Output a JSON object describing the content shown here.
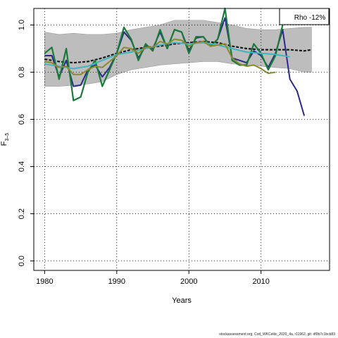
{
  "chart_data": {
    "type": "line",
    "xlabel": "Years",
    "ylabel": "F3-5",
    "ylabel_main": "F",
    "ylabel_sub": "3–5",
    "xlim": [
      1978.5,
      2019.5
    ],
    "ylim": [
      -0.04,
      1.07
    ],
    "x_ticks": [
      1980,
      1990,
      2000,
      2010
    ],
    "y_ticks": [
      0.0,
      0.2,
      0.4,
      0.6,
      0.8,
      1.0
    ],
    "y_tick_labels": [
      "0.0",
      "0.2",
      "0.4",
      "0.6",
      "0.8",
      "1.0"
    ],
    "grid": true,
    "legend_box": "Rho -12%",
    "band": {
      "x": [
        1980,
        1982,
        1984,
        1986,
        1988,
        1990,
        1992,
        1994,
        1996,
        1998,
        2000,
        2002,
        2004,
        2006,
        2008,
        2010,
        2012,
        2014,
        2016,
        2017
      ],
      "lower": [
        0.74,
        0.74,
        0.745,
        0.75,
        0.76,
        0.79,
        0.81,
        0.82,
        0.83,
        0.835,
        0.84,
        0.845,
        0.845,
        0.835,
        0.83,
        0.825,
        0.82,
        0.815,
        0.8,
        0.8
      ],
      "upper": [
        0.97,
        0.96,
        0.965,
        0.96,
        0.96,
        0.965,
        0.98,
        0.99,
        1.0,
        1.02,
        1.02,
        1.02,
        1.01,
        1.0,
        0.985,
        0.98,
        0.98,
        0.985,
        0.99,
        0.99
      ]
    },
    "series": [
      {
        "color": "#1a1a1a",
        "dash": "dashed",
        "width": 2.2,
        "x": [
          1980,
          1982,
          1984,
          1986,
          1988,
          1990,
          1992,
          1994,
          1996,
          1998,
          2000,
          2002,
          2004,
          2006,
          2008,
          2010,
          2012,
          2014,
          2016,
          2017
        ],
        "y": [
          0.855,
          0.845,
          0.84,
          0.845,
          0.86,
          0.88,
          0.895,
          0.905,
          0.91,
          0.92,
          0.925,
          0.93,
          0.925,
          0.91,
          0.9,
          0.895,
          0.895,
          0.895,
          0.89,
          0.895
        ]
      },
      {
        "color": "#2a2a8a",
        "dash": "solid",
        "width": 2,
        "x": [
          1980,
          1981,
          1982,
          1983,
          1984,
          1985,
          1986,
          1987,
          1988,
          1989,
          1990,
          1991,
          1992,
          1993,
          1994,
          1995,
          1996,
          1997,
          1998,
          1999,
          2000,
          2001,
          2002,
          2003,
          2004,
          2005,
          2006,
          2007,
          2008,
          2009,
          2010,
          2011,
          2012,
          2013,
          2014,
          2015,
          2016
        ],
        "y": [
          0.87,
          0.87,
          0.78,
          0.85,
          0.74,
          0.745,
          0.81,
          0.83,
          0.78,
          0.82,
          0.88,
          0.97,
          0.935,
          0.86,
          0.91,
          0.9,
          0.97,
          0.9,
          0.98,
          0.97,
          0.89,
          0.945,
          0.95,
          0.91,
          0.94,
          1.03,
          0.86,
          0.85,
          0.84,
          0.89,
          0.87,
          0.82,
          0.88,
          0.98,
          0.77,
          0.72,
          0.615
        ]
      },
      {
        "color": "#1a7a3a",
        "dash": "solid",
        "width": 2.2,
        "x": [
          1980,
          1981,
          1982,
          1983,
          1984,
          1985,
          1986,
          1987,
          1988,
          1989,
          1990,
          1991,
          1992,
          1993,
          1994,
          1995,
          1996,
          1997,
          1998,
          1999,
          2000,
          2001,
          2002,
          2003,
          2004,
          2005,
          2006,
          2007,
          2008,
          2009,
          2010,
          2011,
          2012,
          2013
        ],
        "y": [
          0.88,
          0.905,
          0.77,
          0.9,
          0.68,
          0.695,
          0.8,
          0.85,
          0.74,
          0.81,
          0.88,
          0.99,
          0.94,
          0.85,
          0.92,
          0.89,
          0.98,
          0.9,
          0.98,
          0.97,
          0.88,
          0.95,
          0.95,
          0.91,
          0.94,
          1.07,
          0.85,
          0.83,
          0.83,
          0.92,
          0.88,
          0.81,
          0.87,
          1.0
        ]
      },
      {
        "color": "#40b4c0",
        "dash": "solid",
        "width": 2,
        "x": [
          1980,
          1982,
          1984,
          1986,
          1988,
          1990,
          1992,
          1994,
          1996,
          1998,
          2000,
          2002,
          2004,
          2006,
          2008,
          2010,
          2012,
          2014
        ],
        "y": [
          0.835,
          0.825,
          0.815,
          0.825,
          0.85,
          0.875,
          0.885,
          0.9,
          0.915,
          0.925,
          0.92,
          0.925,
          0.915,
          0.9,
          0.885,
          0.88,
          0.875,
          0.865
        ]
      },
      {
        "color": "#8a8a30",
        "dash": "solid",
        "width": 2,
        "x": [
          1980,
          1981,
          1982,
          1983,
          1984,
          1985,
          1986,
          1987,
          1988,
          1989,
          1990,
          1991,
          1992,
          1993,
          1994,
          1995,
          1996,
          1997,
          1998,
          1999,
          2000,
          2001,
          2002,
          2003,
          2004,
          2005,
          2006,
          2007,
          2008,
          2009,
          2010,
          2011,
          2012
        ],
        "y": [
          0.845,
          0.84,
          0.82,
          0.825,
          0.79,
          0.79,
          0.81,
          0.825,
          0.82,
          0.845,
          0.87,
          0.905,
          0.9,
          0.88,
          0.905,
          0.905,
          0.93,
          0.92,
          0.94,
          0.935,
          0.91,
          0.925,
          0.93,
          0.91,
          0.915,
          0.92,
          0.86,
          0.835,
          0.825,
          0.83,
          0.815,
          0.795,
          0.8
        ]
      }
    ]
  },
  "footer_text": "stockassessment.org, Cod_WKCeltic_2020_4a, r11962, git: df0b7c1bcb83"
}
